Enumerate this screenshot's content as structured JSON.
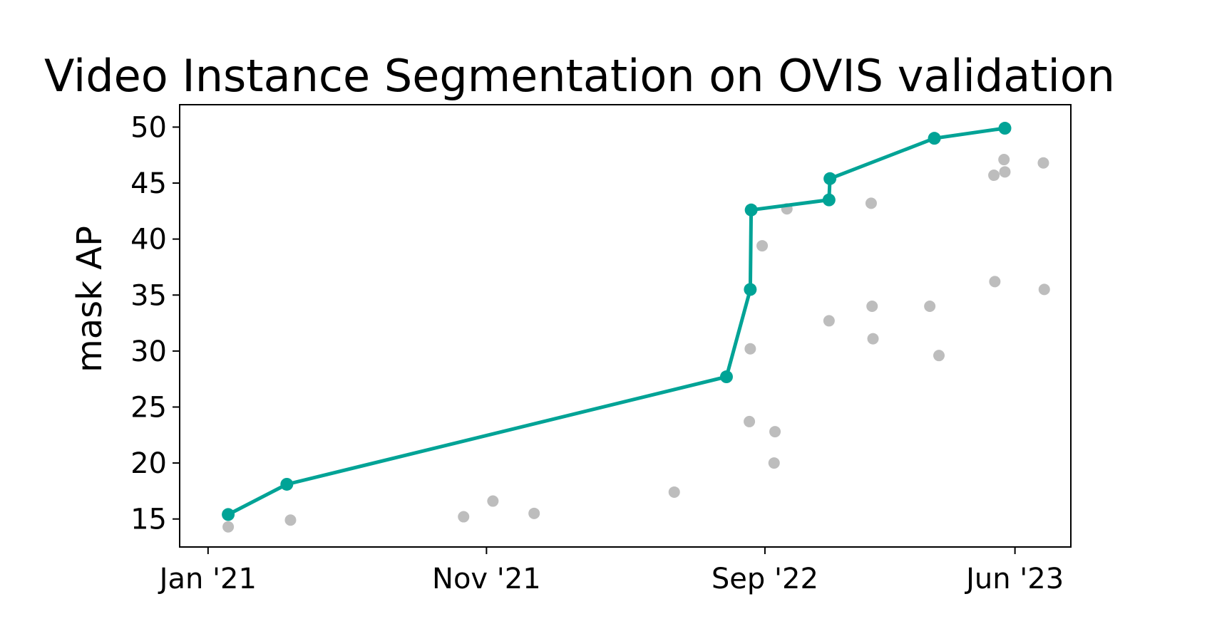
{
  "chart_data": {
    "type": "scatter",
    "title": "Video Instance Segmentation on OVIS validation",
    "xlabel": "",
    "ylabel": "mask AP",
    "x_axis_type": "date",
    "xlim": [
      "2020-12-01",
      "2023-08-01"
    ],
    "ylim": [
      12.5,
      52
    ],
    "x_ticks": [
      {
        "date": "2021-01-01",
        "label": "Jan '21"
      },
      {
        "date": "2021-11-01",
        "label": "Nov '21"
      },
      {
        "date": "2022-09-01",
        "label": "Sep '22"
      },
      {
        "date": "2023-06-01",
        "label": "Jun '23"
      }
    ],
    "y_ticks": [
      15,
      20,
      25,
      30,
      35,
      40,
      45,
      50
    ],
    "grid": false,
    "colors": {
      "sota": "#00a396",
      "other": "#bdbdbd"
    },
    "series": [
      {
        "role": "sota",
        "mode": "line+markers",
        "points": [
          {
            "x": "2021-01-23",
            "y": 15.4
          },
          {
            "x": "2021-03-28",
            "y": 18.1
          },
          {
            "x": "2022-07-21",
            "y": 27.7
          },
          {
            "x": "2022-08-16",
            "y": 35.5
          },
          {
            "x": "2022-08-17",
            "y": 42.6
          },
          {
            "x": "2022-11-10",
            "y": 43.5
          },
          {
            "x": "2022-11-11",
            "y": 45.4
          },
          {
            "x": "2023-03-05",
            "y": 49.0
          },
          {
            "x": "2023-05-21",
            "y": 49.9
          }
        ]
      },
      {
        "role": "other",
        "mode": "markers",
        "points": [
          {
            "x": "2021-01-23",
            "y": 14.3
          },
          {
            "x": "2021-04-01",
            "y": 14.9
          },
          {
            "x": "2021-10-07",
            "y": 15.2
          },
          {
            "x": "2021-11-08",
            "y": 16.6
          },
          {
            "x": "2021-12-23",
            "y": 15.5
          },
          {
            "x": "2022-05-25",
            "y": 17.4
          },
          {
            "x": "2022-08-15",
            "y": 23.7
          },
          {
            "x": "2022-08-16",
            "y": 30.2
          },
          {
            "x": "2022-08-29",
            "y": 39.4
          },
          {
            "x": "2022-09-11",
            "y": 20.0
          },
          {
            "x": "2022-09-12",
            "y": 22.8
          },
          {
            "x": "2022-09-25",
            "y": 42.7
          },
          {
            "x": "2022-11-10",
            "y": 32.7
          },
          {
            "x": "2022-12-26",
            "y": 43.2
          },
          {
            "x": "2022-12-27",
            "y": 34.0
          },
          {
            "x": "2022-12-28",
            "y": 31.1
          },
          {
            "x": "2023-02-28",
            "y": 34.0
          },
          {
            "x": "2023-03-10",
            "y": 29.6
          },
          {
            "x": "2023-05-09",
            "y": 45.7
          },
          {
            "x": "2023-05-10",
            "y": 36.2
          },
          {
            "x": "2023-05-20",
            "y": 47.1
          },
          {
            "x": "2023-05-21",
            "y": 46.0
          },
          {
            "x": "2023-07-02",
            "y": 46.8
          },
          {
            "x": "2023-07-03",
            "y": 35.5
          }
        ]
      }
    ]
  }
}
